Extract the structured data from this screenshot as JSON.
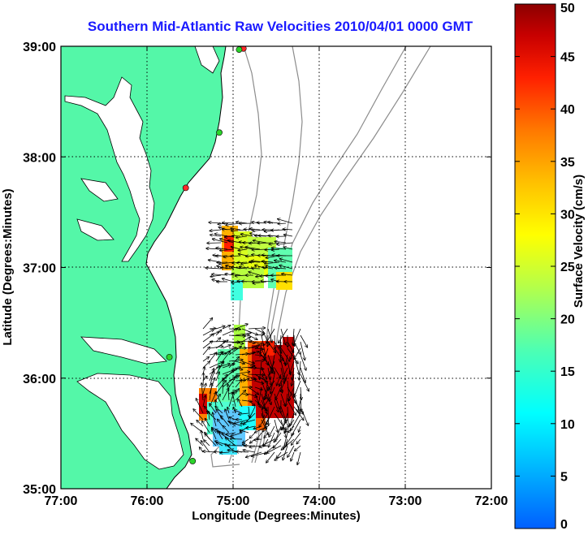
{
  "chart_data": {
    "type": "map",
    "title": "Southern Mid-Atlantic Raw Velocities 2010/04/01 0000 GMT",
    "xlabel": "Longitude (Degrees:Minutes)",
    "ylabel": "Latitude (Degrees:Minutes)",
    "xlim": [
      -77,
      -72
    ],
    "ylim": [
      35,
      39
    ],
    "xticks": [
      {
        "value": -77,
        "label": "77:00"
      },
      {
        "value": -76,
        "label": "76:00"
      },
      {
        "value": -75,
        "label": "75:00"
      },
      {
        "value": -74,
        "label": "74:00"
      },
      {
        "value": -73,
        "label": "73:00"
      },
      {
        "value": -72,
        "label": "72:00"
      }
    ],
    "yticks": [
      {
        "value": 35,
        "label": "35:00"
      },
      {
        "value": 36,
        "label": "36:00"
      },
      {
        "value": 37,
        "label": "37:00"
      },
      {
        "value": 38,
        "label": "38:00"
      },
      {
        "value": 39,
        "label": "39:00"
      }
    ],
    "grid": true,
    "colorbar": {
      "label": "Surface Velocity (cm/s)",
      "min": 0,
      "max": 50,
      "ticks": [
        "0",
        "5",
        "10",
        "15",
        "20",
        "25",
        "30",
        "35",
        "40",
        "45",
        "50"
      ]
    },
    "stations": [
      {
        "lon": -74.88,
        "lat": 38.98,
        "color": "#ff2a2a"
      },
      {
        "lon": -74.93,
        "lat": 38.97,
        "color": "#2bd42b"
      },
      {
        "lon": -75.16,
        "lat": 38.22,
        "color": "#2bd42b"
      },
      {
        "lon": -75.55,
        "lat": 37.72,
        "color": "#ff2a2a"
      },
      {
        "lon": -75.74,
        "lat": 36.19,
        "color": "#2bd42b"
      },
      {
        "lon": -75.47,
        "lat": 35.25,
        "color": "#2bd42b"
      }
    ],
    "colors": {
      "land": "#54f7a8",
      "coast": "#000000",
      "bathymetry": "#8c8c8c",
      "title": "#1a1aff",
      "grid": "#000000"
    }
  }
}
